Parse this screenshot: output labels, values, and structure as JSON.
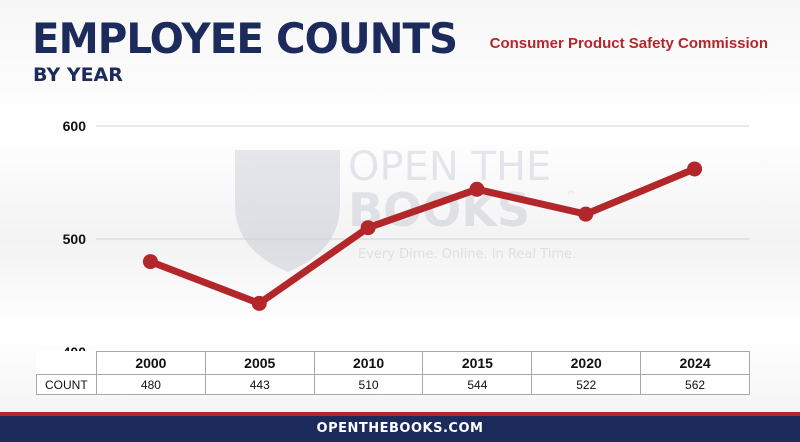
{
  "header": {
    "title": "EMPLOYEE COUNTS",
    "subtitle": "BY YEAR",
    "agency": "Consumer Product Safety Commission"
  },
  "watermark": {
    "line1": "OPEN THE",
    "line2": "BOOKS",
    "tagline": "Every Dime. Online. In Real Time.",
    "mark": "™"
  },
  "table": {
    "row_label": "COUNT"
  },
  "footer": {
    "url": "OPENTHEBOOKS.COM"
  },
  "colors": {
    "navy": "#1c2a5c",
    "red": "#b3272b",
    "line": "#b3272b"
  },
  "chart_data": {
    "type": "line",
    "title": "EMPLOYEE COUNTS",
    "subtitle": "BY YEAR",
    "categories": [
      "2000",
      "2005",
      "2010",
      "2015",
      "2020",
      "2024"
    ],
    "series": [
      {
        "values": [
          480,
          443,
          510,
          544,
          522,
          562
        ]
      }
    ],
    "yticks": [
      "600",
      "500",
      "400"
    ],
    "ylim": [
      400,
      600
    ],
    "grid": true,
    "legend": "none"
  }
}
